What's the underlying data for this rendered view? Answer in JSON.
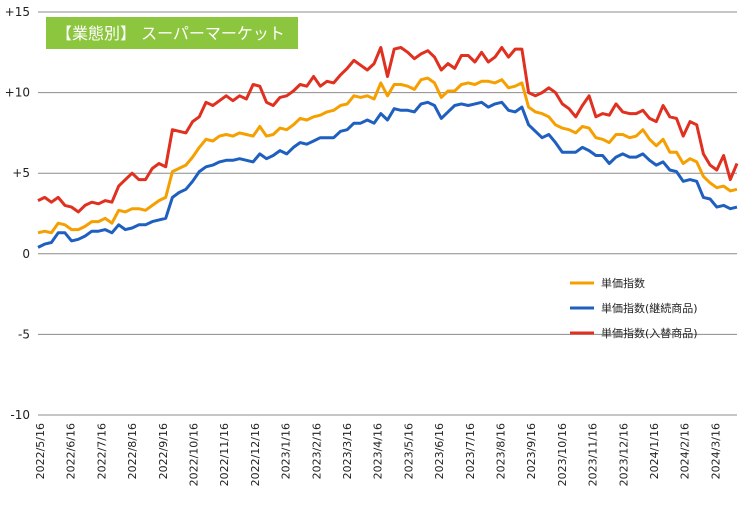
{
  "chart_data": {
    "type": "line",
    "title": "【業態別】 スーパーマーケット",
    "title_box_color": "#8cc63f",
    "xlabel": "",
    "ylabel": "",
    "ylim": [
      -10,
      15
    ],
    "yticks": [
      -10,
      -5,
      0,
      5,
      10,
      15
    ],
    "ytick_labels": [
      "-10",
      "-5",
      "0",
      "+5",
      "+10",
      "+15"
    ],
    "grid": "horizontal",
    "legend_position": "lower-right",
    "xtick_labels": [
      "2022/5/16",
      "2022/6/16",
      "2022/7/16",
      "2022/8/16",
      "2022/9/16",
      "2022/10/16",
      "2022/11/16",
      "2022/12/16",
      "2023/1/16",
      "2023/2/16",
      "2023/3/16",
      "2023/4/16",
      "2023/5/16",
      "2023/6/16",
      "2023/7/16",
      "2023/8/16",
      "2023/9/16",
      "2023/10/16",
      "2023/11/16",
      "2023/12/16",
      "2024/1/16",
      "2024/2/16",
      "2024/3/16",
      "2024/4/16"
    ],
    "series": [
      {
        "name": "単価指数",
        "color": "#f5a000",
        "values": [
          1.3,
          1.4,
          1.3,
          1.9,
          1.8,
          1.5,
          1.5,
          1.7,
          2.0,
          2.0,
          2.2,
          1.9,
          2.7,
          2.6,
          2.8,
          2.8,
          2.7,
          3.0,
          3.3,
          3.5,
          5.1,
          5.3,
          5.5,
          6.0,
          6.6,
          7.1,
          7.0,
          7.3,
          7.4,
          7.3,
          7.5,
          7.4,
          7.3,
          7.9,
          7.3,
          7.4,
          7.8,
          7.7,
          8.0,
          8.4,
          8.3,
          8.5,
          8.6,
          8.8,
          8.9,
          9.2,
          9.3,
          9.8,
          9.7,
          9.8,
          9.6,
          10.6,
          9.8,
          10.5,
          10.5,
          10.4,
          10.2,
          10.8,
          10.9,
          10.6,
          9.7,
          10.1,
          10.1,
          10.5,
          10.6,
          10.5,
          10.7,
          10.7,
          10.6,
          10.8,
          10.3,
          10.4,
          10.6,
          9.1,
          8.8,
          8.7,
          8.5,
          8.0,
          7.8,
          7.7,
          7.5,
          7.9,
          7.8,
          7.2,
          7.1,
          6.9,
          7.4,
          7.4,
          7.2,
          7.3,
          7.7,
          7.1,
          6.7,
          7.1,
          6.3,
          6.3,
          5.6,
          5.9,
          5.7,
          4.8,
          4.4,
          4.1,
          4.2,
          3.9,
          4.0
        ]
      },
      {
        "name": "単価指数(継続商品)",
        "color": "#1f5fbf",
        "values": [
          0.4,
          0.6,
          0.7,
          1.3,
          1.3,
          0.8,
          0.9,
          1.1,
          1.4,
          1.4,
          1.5,
          1.3,
          1.8,
          1.5,
          1.6,
          1.8,
          1.8,
          2.0,
          2.1,
          2.2,
          3.5,
          3.8,
          4.0,
          4.5,
          5.1,
          5.4,
          5.5,
          5.7,
          5.8,
          5.8,
          5.9,
          5.8,
          5.7,
          6.2,
          5.9,
          6.1,
          6.4,
          6.2,
          6.6,
          6.9,
          6.8,
          7.0,
          7.2,
          7.2,
          7.2,
          7.6,
          7.7,
          8.1,
          8.1,
          8.3,
          8.1,
          8.7,
          8.3,
          9.0,
          8.9,
          8.9,
          8.8,
          9.3,
          9.4,
          9.2,
          8.4,
          8.8,
          9.2,
          9.3,
          9.2,
          9.3,
          9.4,
          9.1,
          9.3,
          9.4,
          8.9,
          8.8,
          9.1,
          8.0,
          7.6,
          7.2,
          7.4,
          6.9,
          6.3,
          6.3,
          6.3,
          6.6,
          6.4,
          6.1,
          6.1,
          5.6,
          6.0,
          6.2,
          6.0,
          6.0,
          6.2,
          5.8,
          5.5,
          5.7,
          5.2,
          5.1,
          4.5,
          4.6,
          4.5,
          3.5,
          3.4,
          2.9,
          3.0,
          2.8,
          2.9
        ]
      },
      {
        "name": "単価指数(入替商品)",
        "color": "#e03020",
        "values": [
          3.3,
          3.5,
          3.2,
          3.5,
          3.0,
          2.9,
          2.6,
          3.0,
          3.2,
          3.1,
          3.3,
          3.2,
          4.2,
          4.6,
          5.0,
          4.6,
          4.6,
          5.3,
          5.6,
          5.4,
          7.7,
          7.6,
          7.5,
          8.2,
          8.5,
          9.4,
          9.2,
          9.5,
          9.8,
          9.5,
          9.8,
          9.6,
          10.5,
          10.4,
          9.4,
          9.2,
          9.7,
          9.8,
          10.1,
          10.5,
          10.4,
          11.0,
          10.4,
          10.7,
          10.6,
          11.1,
          11.5,
          12.0,
          11.7,
          11.4,
          11.8,
          12.8,
          11.0,
          12.7,
          12.8,
          12.5,
          12.1,
          12.4,
          12.6,
          12.2,
          11.4,
          11.8,
          11.5,
          12.3,
          12.3,
          11.9,
          12.5,
          11.9,
          12.2,
          12.8,
          12.2,
          12.7,
          12.7,
          10.0,
          9.8,
          10.0,
          10.3,
          10.0,
          9.3,
          9.0,
          8.5,
          9.2,
          9.8,
          8.5,
          8.7,
          8.6,
          9.3,
          8.8,
          8.7,
          8.7,
          8.9,
          8.4,
          8.2,
          9.2,
          8.5,
          8.4,
          7.3,
          8.2,
          8.0,
          6.2,
          5.5,
          5.2,
          6.1,
          4.6,
          5.6
        ]
      }
    ]
  }
}
